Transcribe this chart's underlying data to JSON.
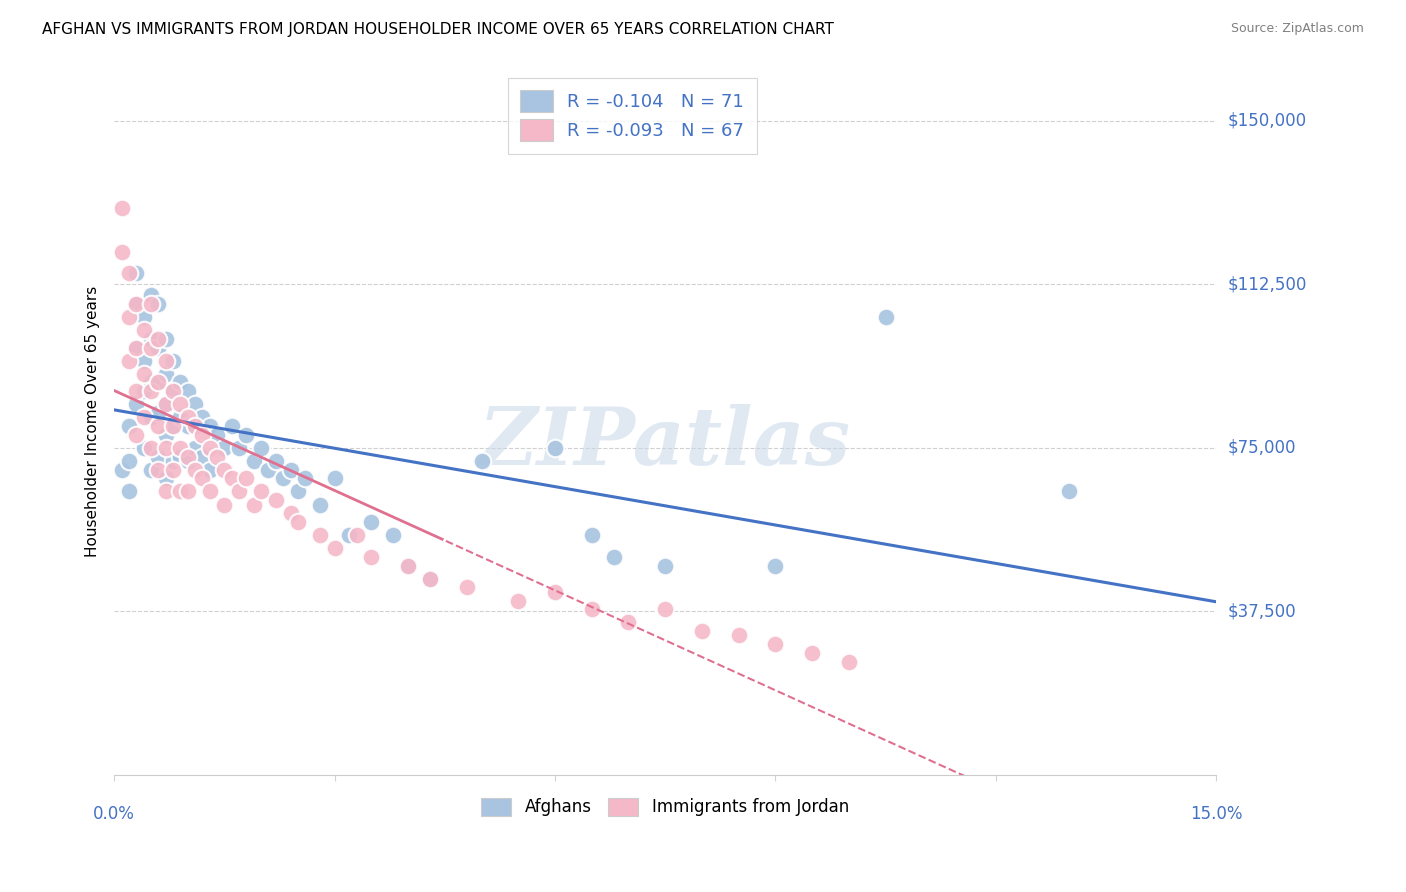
{
  "title": "AFGHAN VS IMMIGRANTS FROM JORDAN HOUSEHOLDER INCOME OVER 65 YEARS CORRELATION CHART",
  "source": "Source: ZipAtlas.com",
  "ylabel": "Householder Income Over 65 years",
  "yticklabels": [
    "$37,500",
    "$75,000",
    "$112,500",
    "$150,000"
  ],
  "ytick_vals": [
    37500,
    75000,
    112500,
    150000
  ],
  "xlim": [
    0.0,
    0.15
  ],
  "ylim": [
    0,
    162000
  ],
  "watermark": "ZIPatlas",
  "legend_r1": "R = -0.104   N = 71",
  "legend_r2": "R = -0.093   N = 67",
  "color_afghan": "#a8c4e0",
  "color_jordan": "#f4b8c8",
  "color_line_afghan": "#4472c4",
  "color_line_jordan": "#e07090",
  "color_axis_labels": "#4472c4",
  "scatter_afghan_x": [
    0.001,
    0.002,
    0.002,
    0.002,
    0.003,
    0.003,
    0.003,
    0.003,
    0.004,
    0.004,
    0.004,
    0.004,
    0.005,
    0.005,
    0.005,
    0.005,
    0.005,
    0.006,
    0.006,
    0.006,
    0.006,
    0.006,
    0.007,
    0.007,
    0.007,
    0.007,
    0.007,
    0.008,
    0.008,
    0.008,
    0.008,
    0.009,
    0.009,
    0.009,
    0.01,
    0.01,
    0.01,
    0.011,
    0.011,
    0.012,
    0.012,
    0.013,
    0.013,
    0.014,
    0.015,
    0.016,
    0.017,
    0.018,
    0.019,
    0.02,
    0.021,
    0.022,
    0.023,
    0.024,
    0.025,
    0.026,
    0.028,
    0.03,
    0.032,
    0.035,
    0.038,
    0.04,
    0.043,
    0.05,
    0.06,
    0.065,
    0.068,
    0.075,
    0.09,
    0.105,
    0.13
  ],
  "scatter_afghan_y": [
    70000,
    80000,
    72000,
    65000,
    115000,
    108000,
    98000,
    85000,
    105000,
    95000,
    88000,
    75000,
    110000,
    100000,
    90000,
    82000,
    70000,
    108000,
    98000,
    90000,
    83000,
    73000,
    100000,
    92000,
    85000,
    78000,
    68000,
    95000,
    88000,
    80000,
    72000,
    90000,
    82000,
    73000,
    88000,
    80000,
    72000,
    85000,
    75000,
    82000,
    73000,
    80000,
    70000,
    78000,
    75000,
    80000,
    75000,
    78000,
    72000,
    75000,
    70000,
    72000,
    68000,
    70000,
    65000,
    68000,
    62000,
    68000,
    55000,
    58000,
    55000,
    48000,
    45000,
    72000,
    75000,
    55000,
    50000,
    48000,
    48000,
    105000,
    65000
  ],
  "scatter_jordan_x": [
    0.001,
    0.001,
    0.002,
    0.002,
    0.002,
    0.003,
    0.003,
    0.003,
    0.003,
    0.004,
    0.004,
    0.004,
    0.005,
    0.005,
    0.005,
    0.005,
    0.006,
    0.006,
    0.006,
    0.006,
    0.007,
    0.007,
    0.007,
    0.007,
    0.008,
    0.008,
    0.008,
    0.009,
    0.009,
    0.009,
    0.01,
    0.01,
    0.01,
    0.011,
    0.011,
    0.012,
    0.012,
    0.013,
    0.013,
    0.014,
    0.015,
    0.015,
    0.016,
    0.017,
    0.018,
    0.019,
    0.02,
    0.022,
    0.024,
    0.025,
    0.028,
    0.03,
    0.033,
    0.035,
    0.04,
    0.043,
    0.048,
    0.055,
    0.06,
    0.065,
    0.07,
    0.075,
    0.08,
    0.085,
    0.09,
    0.095,
    0.1
  ],
  "scatter_jordan_y": [
    130000,
    120000,
    115000,
    105000,
    95000,
    108000,
    98000,
    88000,
    78000,
    102000,
    92000,
    82000,
    108000,
    98000,
    88000,
    75000,
    100000,
    90000,
    80000,
    70000,
    95000,
    85000,
    75000,
    65000,
    88000,
    80000,
    70000,
    85000,
    75000,
    65000,
    82000,
    73000,
    65000,
    80000,
    70000,
    78000,
    68000,
    75000,
    65000,
    73000,
    70000,
    62000,
    68000,
    65000,
    68000,
    62000,
    65000,
    63000,
    60000,
    58000,
    55000,
    52000,
    55000,
    50000,
    48000,
    45000,
    43000,
    40000,
    42000,
    38000,
    35000,
    38000,
    33000,
    32000,
    30000,
    28000,
    26000
  ]
}
